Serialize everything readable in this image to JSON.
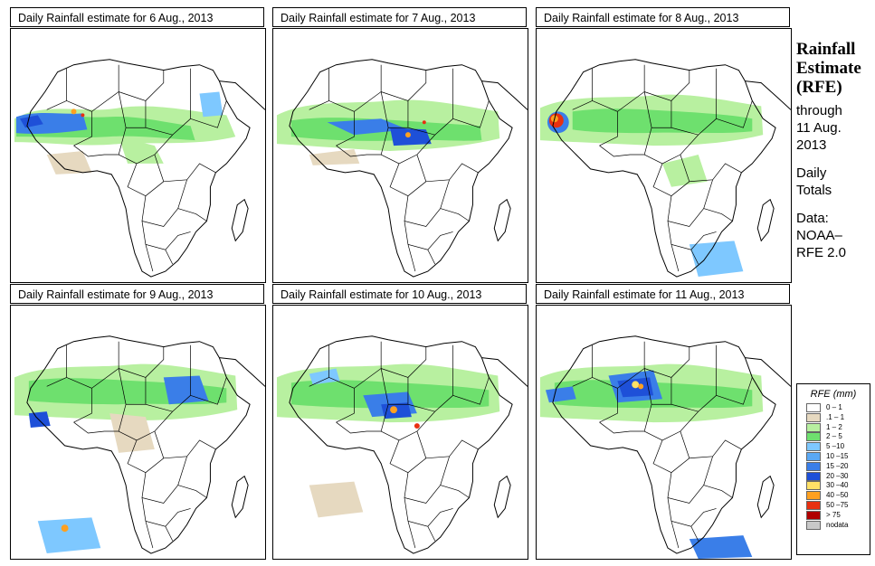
{
  "panels": [
    {
      "title": "Daily Rainfall estimate for  6 Aug., 2013"
    },
    {
      "title": "Daily Rainfall estimate for  7 Aug., 2013"
    },
    {
      "title": "Daily Rainfall estimate for  8 Aug., 2013"
    },
    {
      "title": "Daily Rainfall estimate for  9 Aug., 2013"
    },
    {
      "title": "Daily Rainfall estimate for  10 Aug., 2013"
    },
    {
      "title": "Daily Rainfall estimate for  11 Aug., 2013"
    }
  ],
  "side": {
    "title1": "Rainfall",
    "title2": "Estimate",
    "title3": "(RFE)",
    "through": "through",
    "date1": "11 Aug.",
    "date2": "2013",
    "daily": "Daily",
    "totals": "Totals",
    "data_label": "Data:",
    "source1": "NOAA–",
    "source2": "RFE 2.0"
  },
  "legend": {
    "title": "RFE (mm)",
    "entries": [
      {
        "label": "0 – 1",
        "color": "#ffffff"
      },
      {
        "label": ".1 – 1",
        "color": "#e6d9c0"
      },
      {
        "label": "1 – 2",
        "color": "#b8f0a0"
      },
      {
        "label": "2 – 5",
        "color": "#6ee06e"
      },
      {
        "label": "5 –10",
        "color": "#7ec8ff"
      },
      {
        "label": "10 –15",
        "color": "#5aa8f5"
      },
      {
        "label": "15 –20",
        "color": "#3a7ee8"
      },
      {
        "label": "20 –30",
        "color": "#1e50d8"
      },
      {
        "label": "30 –40",
        "color": "#ffe066"
      },
      {
        "label": "40 –50",
        "color": "#ffa020"
      },
      {
        "label": "50 –75",
        "color": "#e83010"
      },
      {
        "label": "> 75",
        "color": "#b00000"
      },
      {
        "label": "nodata",
        "color": "#c8c8c8"
      }
    ]
  }
}
